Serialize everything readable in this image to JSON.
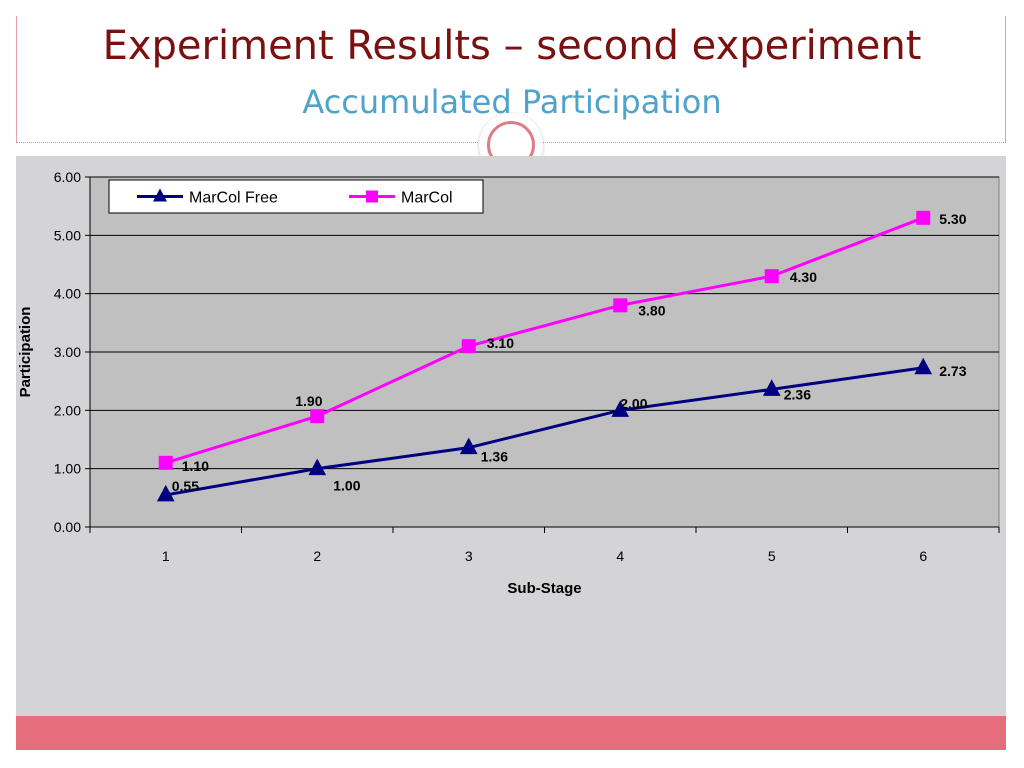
{
  "slide": {
    "title": "Experiment Results – second experiment",
    "subtitle": "Accumulated Participation"
  },
  "colors": {
    "title": "#7a1010",
    "subtitle": "#4fa3c9",
    "panel": "#d4d4d6",
    "plot_area": "#c0c0c0",
    "footer": "#e56e7c",
    "series_free": "#000080",
    "series_marcol": "#ff00ff"
  },
  "chart_data": {
    "type": "line",
    "title": "",
    "xlabel": "Sub-Stage",
    "ylabel": "Participation",
    "categories": [
      "1",
      "2",
      "3",
      "4",
      "5",
      "6"
    ],
    "ylim": [
      0,
      6
    ],
    "yticks": [
      "0.00",
      "1.00",
      "2.00",
      "3.00",
      "4.00",
      "5.00",
      "6.00"
    ],
    "grid": true,
    "legend_position": "top-left",
    "series": [
      {
        "name": "MarCol Free",
        "marker": "triangle",
        "color": "#000080",
        "values": [
          0.55,
          1.0,
          1.36,
          2.0,
          2.36,
          2.73
        ],
        "labels": [
          "0.55",
          "1.00",
          "1.36",
          "2.00",
          "2.36",
          "2.73"
        ]
      },
      {
        "name": "MarCol",
        "marker": "square",
        "color": "#ff00ff",
        "values": [
          1.1,
          1.9,
          3.1,
          3.8,
          4.3,
          5.3
        ],
        "labels": [
          "1.10",
          "1.90",
          "3.10",
          "3.80",
          "4.30",
          "5.30"
        ]
      }
    ]
  }
}
